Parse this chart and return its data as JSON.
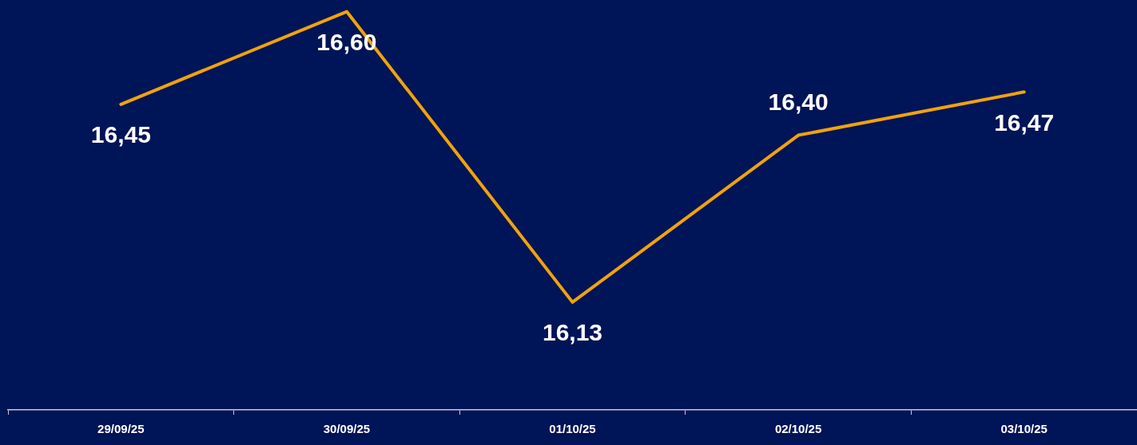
{
  "chart_data": {
    "type": "line",
    "categories": [
      "29/09/25",
      "30/09/25",
      "01/10/25",
      "02/10/25",
      "03/10/25"
    ],
    "series": [
      {
        "color": "#f0a30a",
        "values": [
          16.45,
          16.6,
          16.13,
          16.4,
          16.47
        ],
        "value_labels": [
          "16,45",
          "16,60",
          "16,13",
          "16,40",
          "16,47"
        ]
      }
    ],
    "marker": "none",
    "line_style": "solid",
    "tick_labels": "x",
    "legend": false,
    "grid": false
  }
}
